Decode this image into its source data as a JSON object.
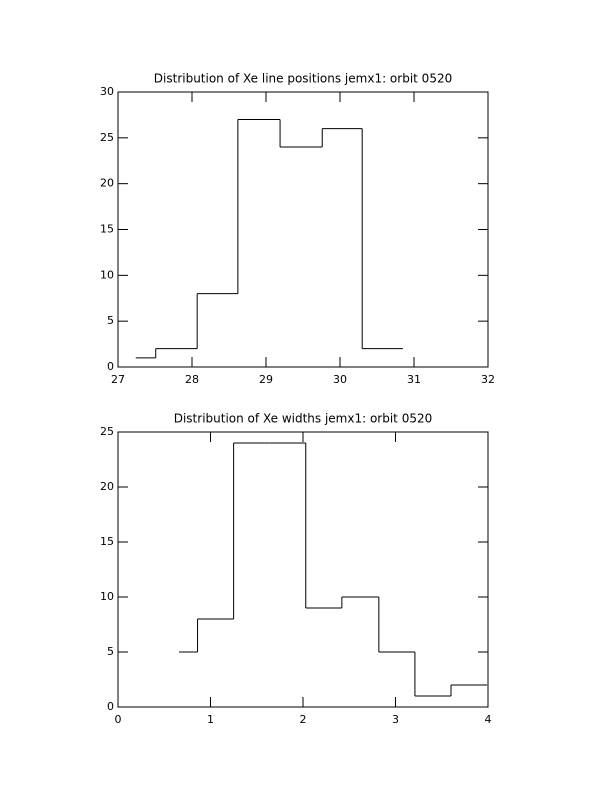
{
  "chart_data": [
    {
      "type": "histogram",
      "title": "Distribution of Xe line positions jemx1: orbit 0520",
      "bins": [
        27.24,
        27.51,
        28.07,
        28.62,
        29.19,
        29.76,
        30.3,
        30.85
      ],
      "values": [
        1,
        2,
        8,
        27,
        24,
        26,
        2
      ],
      "color": "#000000",
      "xlim": [
        27,
        32
      ],
      "xticks": [
        27,
        28,
        29,
        30,
        31,
        32
      ],
      "ylim": [
        0,
        30
      ],
      "yticks": [
        0,
        5,
        10,
        15,
        20,
        25,
        30
      ]
    },
    {
      "type": "histogram",
      "title": "Distribution of Xe widths jemx1: orbit 0520",
      "bins": [
        0.66,
        0.86,
        1.25,
        1.64,
        2.03,
        2.42,
        2.82,
        3.21,
        3.6,
        3.99
      ],
      "values": [
        5,
        8,
        24,
        24,
        9,
        10,
        5,
        1,
        2
      ],
      "color": "#000000",
      "xlim": [
        0,
        4
      ],
      "xticks": [
        0,
        1,
        2,
        3,
        4
      ],
      "ylim": [
        0,
        25
      ],
      "yticks": [
        0,
        5,
        10,
        15,
        20,
        25
      ]
    }
  ]
}
